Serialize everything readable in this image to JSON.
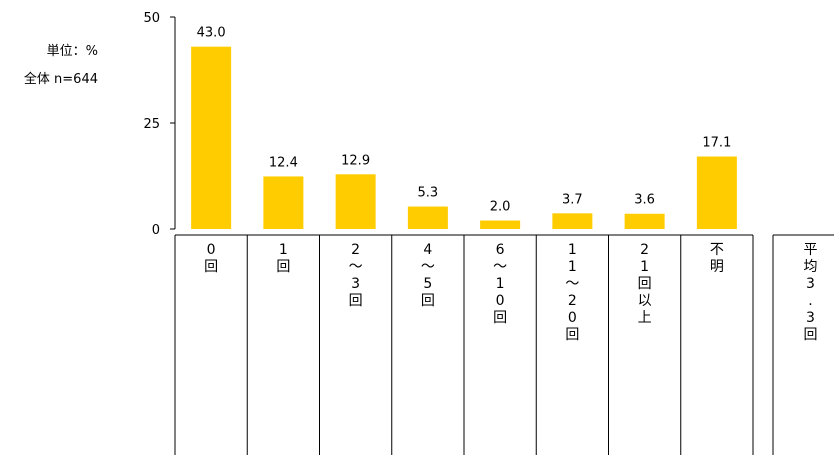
{
  "chart_data": {
    "type": "bar",
    "title": "",
    "xlabel": "",
    "ylabel": "",
    "unit_label": "単位：%",
    "sample_label": "全体 n=644",
    "ylim": [
      0,
      50
    ],
    "yticks": [
      0,
      25,
      50
    ],
    "categories": [
      "0回",
      "1回",
      "2～3回",
      "4～5回",
      "6～10回",
      "11～20回",
      "21回以上",
      "不明"
    ],
    "values": [
      43.0,
      12.4,
      12.9,
      5.3,
      2.0,
      3.7,
      3.6,
      17.1
    ],
    "value_labels": [
      "43.0",
      "12.4",
      "12.9",
      "5.3",
      "2.0",
      "3.7",
      "3.6",
      "17.1"
    ],
    "average_label": "平均3.3回",
    "bar_color": "#FFCC00",
    "grid": false,
    "legend": "none"
  }
}
